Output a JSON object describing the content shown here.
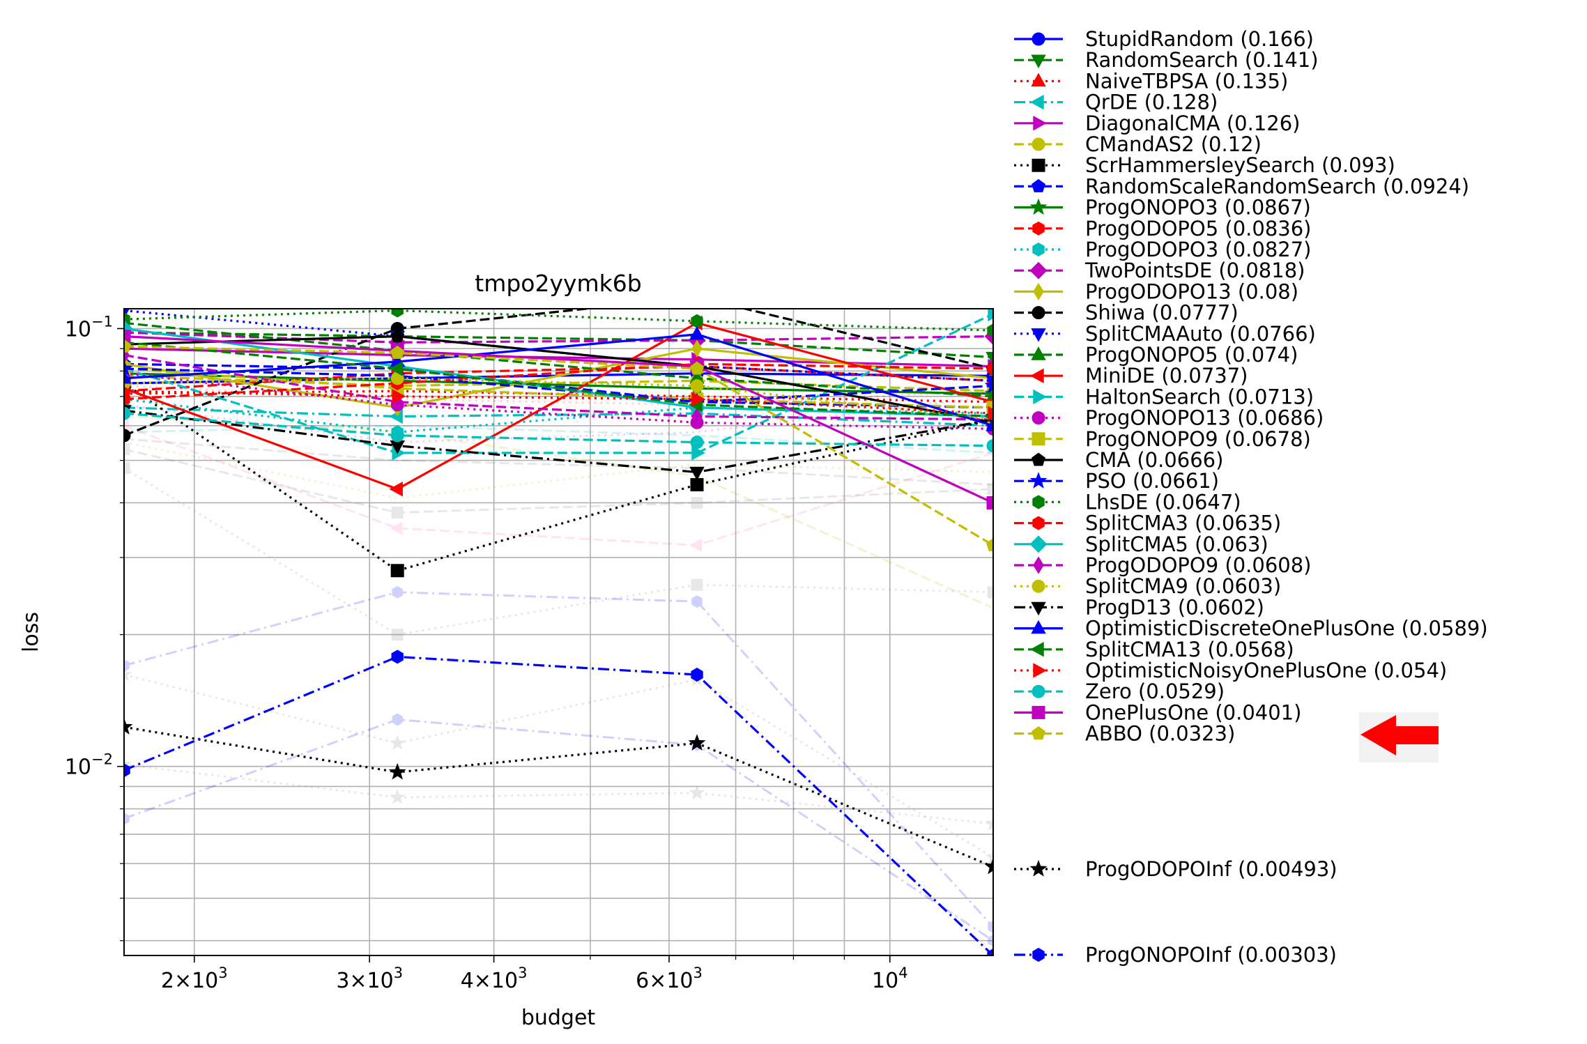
{
  "chart_data": {
    "type": "line",
    "title": "tmpo2yymk6b",
    "xlabel": "budget",
    "ylabel": "loss",
    "x_scale": "log",
    "y_scale": "log",
    "xlim": [
      1700,
      12700
    ],
    "ylim": [
      0.0037,
      0.111
    ],
    "grid": true,
    "legend_placement": "outside-right",
    "x_ticks": [
      {
        "value": 2000,
        "base": "2",
        "exp": "3"
      },
      {
        "value": 3000,
        "base": "3",
        "exp": "3"
      },
      {
        "value": 4000,
        "base": "4",
        "exp": "3"
      },
      {
        "value": 6000,
        "base": "6",
        "exp": "3"
      },
      {
        "value": 10000,
        "base": "10",
        "exp": "4"
      }
    ],
    "y_ticks": [
      {
        "value": 0.1,
        "base": "10",
        "exp": "−1"
      },
      {
        "value": 0.01,
        "base": "10",
        "exp": "−2"
      }
    ],
    "x": [
      1700,
      3200,
      6400,
      12700
    ],
    "series": [
      {
        "name": "StupidRandom (0.166)",
        "color": "#0000ff",
        "dash": "solid",
        "marker": "circle",
        "values": [
          0.075,
          0.077,
          0.079,
          0.078
        ]
      },
      {
        "name": "RandomSearch (0.141)",
        "color": "#007f00",
        "dash": "dashed",
        "marker": "tri-down",
        "values": [
          0.098,
          0.096,
          0.094,
          0.086
        ]
      },
      {
        "name": "NaiveTBPSA (0.135)",
        "color": "#ff0000",
        "dash": "dotted",
        "marker": "tri-up",
        "values": [
          0.071,
          0.072,
          0.07,
          0.068
        ]
      },
      {
        "name": "QrDE (0.128)",
        "color": "#00bfbf",
        "dash": "dashdot",
        "marker": "tri-left",
        "values": [
          0.066,
          0.063,
          0.064,
          0.06
        ]
      },
      {
        "name": "DiagonalCMA (0.126)",
        "color": "#bf00bf",
        "dash": "solid",
        "marker": "tri-right",
        "values": [
          0.09,
          0.087,
          0.085,
          0.082
        ]
      },
      {
        "name": "CMandAS2 (0.12)",
        "color": "#bfbf00",
        "dash": "dashed",
        "marker": "octagon",
        "values": [
          0.078,
          0.074,
          0.076,
          0.072
        ]
      },
      {
        "name": "ScrHammersleySearch (0.093)",
        "color": "#000000",
        "dash": "dotted",
        "marker": "square",
        "values": [
          0.075,
          0.028,
          0.044,
          0.062
        ]
      },
      {
        "name": "RandomScaleRandomSearch (0.0924)",
        "color": "#0000ff",
        "dash": "dashed",
        "marker": "pentagon",
        "values": [
          0.083,
          0.081,
          0.068,
          0.066
        ]
      },
      {
        "name": "ProgONOPO3 (0.0867)",
        "color": "#007f00",
        "dash": "solid",
        "marker": "star",
        "values": [
          0.079,
          0.076,
          0.073,
          0.071
        ]
      },
      {
        "name": "ProgODOPO5 (0.0836)",
        "color": "#ff0000",
        "dash": "dashed",
        "marker": "hexagon",
        "values": [
          0.072,
          0.079,
          0.082,
          0.076
        ]
      },
      {
        "name": "ProgODOPO3 (0.0827)",
        "color": "#00bfbf",
        "dash": "dotted",
        "marker": "hexagon",
        "values": [
          0.069,
          0.058,
          0.066,
          0.064
        ]
      },
      {
        "name": "TwoPointsDE (0.0818)",
        "color": "#bf00bf",
        "dash": "dashed",
        "marker": "diamond",
        "values": [
          0.098,
          0.093,
          0.094,
          0.096
        ]
      },
      {
        "name": "ProgODOPO13 (0.08)",
        "color": "#bfbf00",
        "dash": "solid",
        "marker": "thin-diamond",
        "values": [
          0.083,
          0.066,
          0.09,
          0.077
        ]
      },
      {
        "name": "Shiwa (0.0777)",
        "color": "#000000",
        "dash": "dashed",
        "marker": "circle",
        "values": [
          0.057,
          0.1,
          0.118,
          0.081
        ]
      },
      {
        "name": "SplitCMAAuto (0.0766)",
        "color": "#0000ff",
        "dash": "dotted",
        "marker": "tri-down",
        "values": [
          0.11,
          0.096,
          0.082,
          0.076
        ]
      },
      {
        "name": "ProgONOPO5 (0.074)",
        "color": "#007f00",
        "dash": "dashed",
        "marker": "tri-up",
        "values": [
          0.103,
          0.089,
          0.077,
          0.07
        ]
      },
      {
        "name": "MiniDE (0.0737)",
        "color": "#ff0000",
        "dash": "solid",
        "marker": "tri-left",
        "values": [
          0.073,
          0.043,
          0.103,
          0.068
        ]
      },
      {
        "name": "HaltonSearch (0.0713)",
        "color": "#00bfbf",
        "dash": "dashed",
        "marker": "tri-right",
        "values": [
          0.081,
          0.052,
          0.052,
          0.108
        ]
      },
      {
        "name": "ProgONOPO13 (0.0686)",
        "color": "#bf00bf",
        "dash": "dotted",
        "marker": "octagon",
        "values": [
          0.079,
          0.067,
          0.061,
          0.059
        ]
      },
      {
        "name": "ProgONOPO9 (0.0678)",
        "color": "#bfbf00",
        "dash": "dashed",
        "marker": "square",
        "values": [
          0.081,
          0.073,
          0.069,
          0.066
        ]
      },
      {
        "name": "CMA (0.0666)",
        "color": "#000000",
        "dash": "solid",
        "marker": "pentagon",
        "values": [
          0.092,
          0.096,
          0.082,
          0.061
        ]
      },
      {
        "name": "PSO (0.0661)",
        "color": "#0000ff",
        "dash": "dashed",
        "marker": "star",
        "values": [
          0.081,
          0.078,
          0.068,
          0.074
        ]
      },
      {
        "name": "LhsDE (0.0647)",
        "color": "#007f00",
        "dash": "dotted",
        "marker": "hexagon",
        "values": [
          0.105,
          0.11,
          0.104,
          0.099
        ]
      },
      {
        "name": "SplitCMA3 (0.0635)",
        "color": "#ff0000",
        "dash": "dashed",
        "marker": "hexagon",
        "values": [
          0.069,
          0.075,
          0.083,
          0.081
        ]
      },
      {
        "name": "SplitCMA5 (0.063)",
        "color": "#00bfbf",
        "dash": "solid",
        "marker": "diamond",
        "values": [
          0.1,
          0.082,
          0.066,
          0.063
        ]
      },
      {
        "name": "ProgODOPO9 (0.0608)",
        "color": "#bf00bf",
        "dash": "dashed",
        "marker": "thin-diamond",
        "values": [
          0.087,
          0.068,
          0.063,
          0.062
        ]
      },
      {
        "name": "SplitCMA9 (0.0603)",
        "color": "#bfbf00",
        "dash": "dotted",
        "marker": "octagon",
        "values": [
          0.075,
          0.077,
          0.074,
          0.062
        ]
      },
      {
        "name": "ProgD13 (0.0602)",
        "color": "#000000",
        "dash": "dashdot",
        "marker": "tri-down",
        "values": [
          0.065,
          0.054,
          0.047,
          0.062
        ]
      },
      {
        "name": "OptimisticDiscreteOnePlusOne (0.0589)",
        "color": "#0000ff",
        "dash": "solid",
        "marker": "tri-up",
        "values": [
          0.077,
          0.084,
          0.097,
          0.06
        ]
      },
      {
        "name": "SplitCMA13 (0.0568)",
        "color": "#007f00",
        "dash": "dashed",
        "marker": "tri-left",
        "values": [
          0.093,
          0.081,
          0.067,
          0.063
        ]
      },
      {
        "name": "OptimisticNoisyOnePlusOne (0.054)",
        "color": "#ff0000",
        "dash": "dotted",
        "marker": "tri-right",
        "values": [
          0.072,
          0.07,
          0.069,
          0.064
        ]
      },
      {
        "name": "Zero (0.0529)",
        "color": "#00bfbf",
        "dash": "dashed",
        "marker": "circle",
        "values": [
          0.064,
          0.057,
          0.055,
          0.054
        ]
      },
      {
        "name": "OnePlusOne (0.0401)",
        "color": "#bf00bf",
        "dash": "solid",
        "marker": "square",
        "values": [
          0.096,
          0.089,
          0.082,
          0.04
        ]
      },
      {
        "name": "ABBO (0.0323)",
        "color": "#bfbf00",
        "dash": "dashed",
        "marker": "pentagon",
        "values": [
          0.091,
          0.088,
          0.081,
          0.032
        ]
      },
      {
        "name": "ProgODOPOInf (0.00493)",
        "color": "#000000",
        "dash": "dotted",
        "marker": "star",
        "values": [
          0.0123,
          0.0097,
          0.0113,
          0.0059
        ]
      },
      {
        "name": "ProgONOPOInf (0.00303)",
        "color": "#0000ff",
        "dash": "dashdot",
        "marker": "hexagon",
        "values": [
          0.0098,
          0.0178,
          0.0162,
          0.0037
        ]
      }
    ],
    "faded_series": [
      {
        "color": "#7f7f7f",
        "dash": "dotted",
        "marker": "star",
        "values": [
          0.0101,
          0.0085,
          0.0087,
          0.0074
        ]
      },
      {
        "color": "#7f7f7f",
        "dash": "dotted",
        "marker": "star",
        "values": [
          0.0162,
          0.0113,
          0.0158,
          0.0062
        ]
      },
      {
        "color": "#0000ff",
        "dash": "dashdot",
        "marker": "hexagon",
        "values": [
          0.0076,
          0.0128,
          0.0112,
          0.004
        ]
      },
      {
        "color": "#0000ff",
        "dash": "dashdot",
        "marker": "hexagon",
        "values": [
          0.017,
          0.025,
          0.0238,
          0.0043
        ]
      },
      {
        "color": "#7f7f7f",
        "dash": "dotted",
        "marker": "square",
        "values": [
          0.048,
          0.02,
          0.026,
          0.025
        ]
      },
      {
        "color": "#7f7f7f",
        "dash": "dashed",
        "marker": "square",
        "values": [
          0.053,
          0.038,
          0.04,
          0.043
        ]
      },
      {
        "color": "#ff69b4",
        "dash": "dashed",
        "marker": "tri-left",
        "values": [
          0.06,
          0.035,
          0.032,
          0.052
        ]
      },
      {
        "color": "#bfbf00",
        "dash": "dashed",
        "marker": "none",
        "values": [
          0.063,
          0.058,
          0.046,
          0.023
        ]
      },
      {
        "color": "#7f7f7f",
        "dash": "dashed",
        "marker": "none",
        "values": [
          0.056,
          0.05,
          0.048,
          0.044
        ]
      },
      {
        "color": "#bfbf00",
        "dash": "dotted",
        "marker": "none",
        "values": [
          0.055,
          0.041,
          0.049,
          0.047
        ]
      },
      {
        "color": "#ff0000",
        "dash": "dotted",
        "marker": "none",
        "values": [
          0.074,
          0.069,
          0.067,
          0.072
        ]
      },
      {
        "color": "#00bfbf",
        "dash": "dashed",
        "marker": "none",
        "values": [
          0.058,
          0.06,
          0.057,
          0.052
        ]
      },
      {
        "color": "#bf00bf",
        "dash": "dotted",
        "marker": "none",
        "values": [
          0.067,
          0.055,
          0.058,
          0.07
        ]
      }
    ],
    "annotation": {
      "type": "arrow",
      "color": "#ff0000",
      "points_to": "ABBO (0.0323)"
    }
  }
}
